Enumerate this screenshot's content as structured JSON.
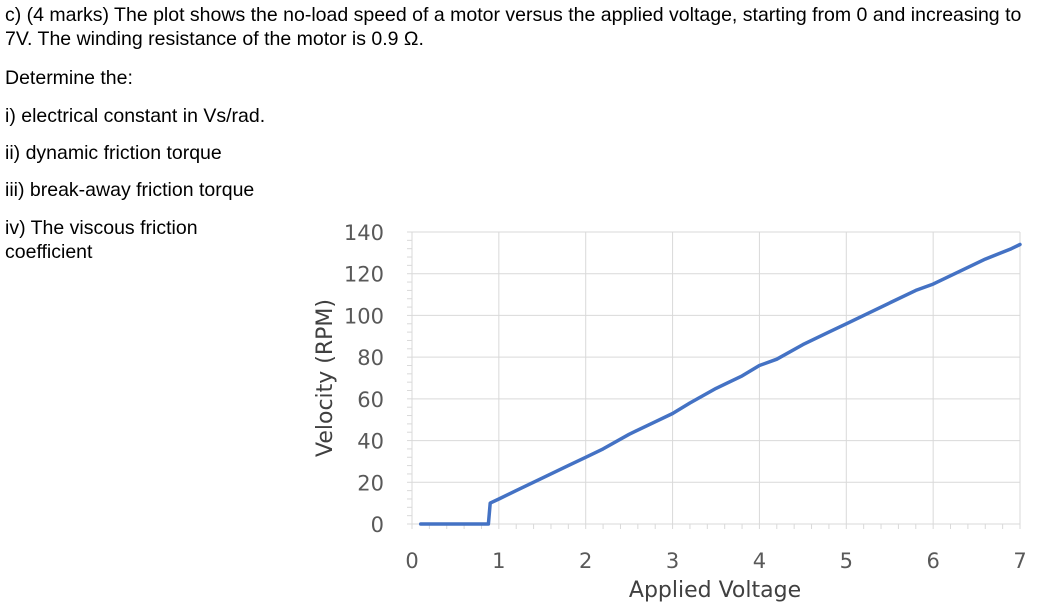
{
  "question": {
    "intro": "c) (4 marks) The plot shows the no-load speed of a motor versus the applied voltage, starting from 0 and increasing to 7V. The winding resistance of the motor is 0.9 Ω.",
    "prompt": "Determine the:",
    "items": [
      "i) electrical constant in Vs/rad.",
      "ii) dynamic friction torque",
      "iii) break-away friction torque",
      "iv) The viscous friction coefficient"
    ]
  },
  "chart_data": {
    "type": "line",
    "title": "",
    "xlabel": "Applied Voltage",
    "ylabel": "Velocity (RPM)",
    "xlim": [
      0,
      7
    ],
    "ylim": [
      0,
      140
    ],
    "xticks": [
      0,
      1,
      2,
      3,
      4,
      5,
      6,
      7
    ],
    "yticks": [
      0,
      20,
      40,
      60,
      80,
      100,
      120,
      140
    ],
    "grid": true,
    "legend": "none",
    "line_color": "#4472c4",
    "series": [
      {
        "x": [
          0.1,
          0.8,
          0.88,
          0.9,
          1.0,
          1.2,
          1.5,
          1.8,
          2.0,
          2.2,
          2.5,
          2.8,
          3.0,
          3.2,
          3.5,
          3.8,
          4.0,
          4.2,
          4.5,
          4.8,
          5.0,
          5.5,
          5.8,
          6.0,
          6.3,
          6.6,
          6.9,
          7.0
        ],
        "y": [
          0,
          0,
          0,
          10,
          12,
          16,
          22,
          28,
          32,
          36,
          43,
          49,
          53,
          58,
          65,
          71,
          76,
          79,
          86,
          92,
          96,
          106,
          112,
          115,
          121,
          127,
          132,
          134
        ]
      }
    ]
  }
}
